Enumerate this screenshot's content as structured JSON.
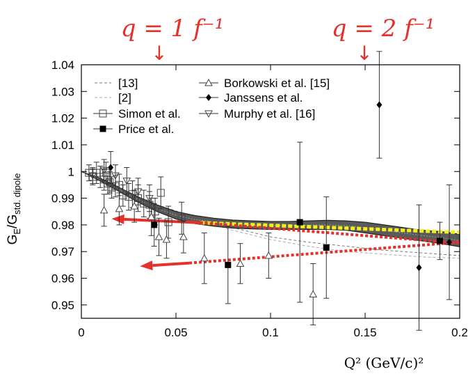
{
  "chart_data": {
    "type": "scatter",
    "xlabel": "Q² (GeV/c)²",
    "ylabel_main": "G",
    "ylabel_sub1": "E",
    "ylabel_mid": "/G",
    "ylabel_sub2": "std. dipole",
    "xlim": [
      0,
      0.2
    ],
    "ylim": [
      0.945,
      1.04
    ],
    "x_ticks": [
      0,
      0.05,
      0.1,
      0.15,
      0.2
    ],
    "x_tick_labels": [
      "0",
      "0.05",
      "0.1",
      "0.15",
      "0.2"
    ],
    "y_ticks": [
      0.95,
      0.96,
      0.97,
      0.98,
      0.99,
      1.0,
      1.01,
      1.02,
      1.03,
      1.04
    ],
    "y_tick_labels": [
      "0.95",
      "0.96",
      "0.97",
      "0.98",
      "0.99",
      "1",
      "1.01",
      "1.02",
      "1.03",
      "1.04"
    ],
    "top_annotations": [
      {
        "label": "q = 1 f⁻¹",
        "x": 0.04
      },
      {
        "label": "q = 2 f⁻¹",
        "x": 0.1496
      }
    ],
    "band": {
      "x": [
        0,
        0.01,
        0.02,
        0.03,
        0.04,
        0.05,
        0.06,
        0.07,
        0.08,
        0.09,
        0.1,
        0.11,
        0.12,
        0.13,
        0.14,
        0.15,
        0.16,
        0.17,
        0.18,
        0.19,
        0.2
      ],
      "upper": [
        1.0,
        0.9975,
        0.994,
        0.9905,
        0.9875,
        0.985,
        0.9835,
        0.9825,
        0.9818,
        0.9815,
        0.9813,
        0.9813,
        0.9815,
        0.9817,
        0.9815,
        0.981,
        0.98,
        0.979,
        0.978,
        0.9775,
        0.9765
      ],
      "lower": [
        1.0,
        0.9965,
        0.9925,
        0.9885,
        0.985,
        0.9822,
        0.9805,
        0.9795,
        0.9788,
        0.9785,
        0.9783,
        0.9783,
        0.9783,
        0.9783,
        0.978,
        0.977,
        0.976,
        0.975,
        0.974,
        0.973,
        0.9718
      ]
    },
    "dashed_curves": [
      {
        "name": "[13]",
        "x": [
          0,
          0.02,
          0.04,
          0.06,
          0.08,
          0.1,
          0.12,
          0.14,
          0.16,
          0.18,
          0.2
        ],
        "y": [
          1.0,
          0.9935,
          0.9875,
          0.983,
          0.979,
          0.9755,
          0.9735,
          0.972,
          0.9705,
          0.9695,
          0.9685
        ]
      },
      {
        "name": "[2]",
        "x": [
          0,
          0.02,
          0.04,
          0.06,
          0.08,
          0.1,
          0.12,
          0.14,
          0.16,
          0.18,
          0.2
        ],
        "y": [
          1.0,
          0.9932,
          0.987,
          0.982,
          0.978,
          0.9745,
          0.972,
          0.97,
          0.969,
          0.968,
          0.9675
        ]
      }
    ],
    "red_lines": {
      "yellow_fit": {
        "x": [
          0.063,
          0.2
        ],
        "y": [
          0.9808,
          0.9772
        ]
      },
      "red_dotted_upper": {
        "x": [
          0.0628,
          0.2
        ],
        "y": [
          0.9808,
          0.9732
        ]
      },
      "red_dotted_lower": {
        "x": [
          0.057,
          0.2
        ],
        "y": [
          0.9657,
          0.9735
        ]
      },
      "arrow_upper": {
        "x_from": 0.0628,
        "y_from": 0.9808,
        "x_to": 0.016,
        "y_to": 0.9823
      },
      "arrow_lower": {
        "x_from": 0.057,
        "y_from": 0.9657,
        "x_to": 0.031,
        "y_to": 0.9645
      }
    },
    "series": [
      {
        "name": "Simon et al.",
        "marker": "open-square",
        "points": [
          {
            "x": 0.004,
            "y": 0.9995,
            "err": 0.003
          },
          {
            "x": 0.006,
            "y": 0.998,
            "err": 0.003
          },
          {
            "x": 0.008,
            "y": 0.9995,
            "err": 0.004
          },
          {
            "x": 0.01,
            "y": 0.998,
            "err": 0.004
          },
          {
            "x": 0.012,
            "y": 0.997,
            "err": 0.004
          },
          {
            "x": 0.013,
            "y": 0.9995,
            "err": 0.004
          },
          {
            "x": 0.014,
            "y": 0.9955,
            "err": 0.004
          },
          {
            "x": 0.015,
            "y": 0.996,
            "err": 0.004
          },
          {
            "x": 0.016,
            "y": 0.994,
            "err": 0.004
          },
          {
            "x": 0.018,
            "y": 0.9945,
            "err": 0.004
          },
          {
            "x": 0.02,
            "y": 0.995,
            "err": 0.004
          },
          {
            "x": 0.022,
            "y": 0.991,
            "err": 0.004
          },
          {
            "x": 0.025,
            "y": 0.9905,
            "err": 0.005
          },
          {
            "x": 0.027,
            "y": 0.9915,
            "err": 0.005
          },
          {
            "x": 0.03,
            "y": 0.99,
            "err": 0.005
          },
          {
            "x": 0.033,
            "y": 0.988,
            "err": 0.005
          },
          {
            "x": 0.036,
            "y": 0.9875,
            "err": 0.005
          },
          {
            "x": 0.039,
            "y": 0.985,
            "err": 0.005
          },
          {
            "x": 0.042,
            "y": 0.992,
            "err": 0.006
          },
          {
            "x": 0.046,
            "y": 0.981,
            "err": 0.006
          },
          {
            "x": 0.053,
            "y": 0.9825,
            "err": 0.006
          }
        ]
      },
      {
        "name": "Price et al.",
        "marker": "filled-square",
        "points": [
          {
            "x": 0.0385,
            "y": 0.98,
            "err": 0.008
          },
          {
            "x": 0.0775,
            "y": 0.965,
            "err": 0.0145
          },
          {
            "x": 0.1155,
            "y": 0.981,
            "err": 0.03
          },
          {
            "x": 0.1295,
            "y": 0.9715,
            "err": 0.019
          },
          {
            "x": 0.1895,
            "y": 0.974,
            "err": 0.007
          }
        ]
      },
      {
        "name": "Borkowski et al. [15]",
        "marker": "open-triangle-up",
        "points": [
          {
            "x": 0.012,
            "y": 0.9855,
            "err": 0.006
          },
          {
            "x": 0.02,
            "y": 0.986,
            "err": 0.006
          },
          {
            "x": 0.028,
            "y": 0.987,
            "err": 0.006
          },
          {
            "x": 0.037,
            "y": 0.983,
            "err": 0.007
          },
          {
            "x": 0.041,
            "y": 0.9755,
            "err": 0.007
          },
          {
            "x": 0.045,
            "y": 0.9745,
            "err": 0.007
          },
          {
            "x": 0.054,
            "y": 0.9755,
            "err": 0.006
          },
          {
            "x": 0.065,
            "y": 0.9675,
            "err": 0.0095
          },
          {
            "x": 0.084,
            "y": 0.9655,
            "err": 0.0075
          },
          {
            "x": 0.099,
            "y": 0.9685,
            "err": 0.0085
          },
          {
            "x": 0.1225,
            "y": 0.954,
            "err": 0.0115
          }
        ]
      },
      {
        "name": "Janssens et al.",
        "marker": "filled-diamond",
        "points": [
          {
            "x": 0.0155,
            "y": 1.0015,
            "err": 0.006
          },
          {
            "x": 0.1575,
            "y": 1.025,
            "err": 0.02
          },
          {
            "x": 0.1785,
            "y": 0.964,
            "err": 0.0235
          },
          {
            "x": 0.1945,
            "y": 0.9735,
            "err": 0.0215
          }
        ]
      },
      {
        "name": "Murphy et al. [16]",
        "marker": "open-triangle-down",
        "points": [
          {
            "x": 0.006,
            "y": 0.9985,
            "err": 0.003
          },
          {
            "x": 0.012,
            "y": 1.0005,
            "err": 0.004
          },
          {
            "x": 0.018,
            "y": 0.9985,
            "err": 0.004
          },
          {
            "x": 0.024,
            "y": 0.9965,
            "err": 0.005
          },
          {
            "x": 0.03,
            "y": 0.9925,
            "err": 0.005
          },
          {
            "x": 0.036,
            "y": 0.99,
            "err": 0.005
          }
        ]
      }
    ],
    "legend": {
      "col1": [
        {
          "label": "[13]",
          "marker": "dash-dark"
        },
        {
          "label": "[2]",
          "marker": "dash-light"
        },
        {
          "label": "Simon et al.",
          "marker": "open-square"
        },
        {
          "label": "Price et al.",
          "marker": "filled-square"
        }
      ],
      "col2": [
        {
          "label": "Borkowski et al. [15]",
          "marker": "open-triangle-up"
        },
        {
          "label": "Janssens et al.",
          "marker": "filled-diamond"
        },
        {
          "label": "Murphy et al. [16]",
          "marker": "open-triangle-down"
        }
      ]
    },
    "colors": {
      "band_fill": "#5a5a5a",
      "band_edge": "#222222",
      "annotation": "#e8302a",
      "yellow_fit": "#f2ef1a",
      "red_fit": "#e8302a",
      "dash_dark": "#777777",
      "dash_light": "#aaaaaa"
    }
  }
}
